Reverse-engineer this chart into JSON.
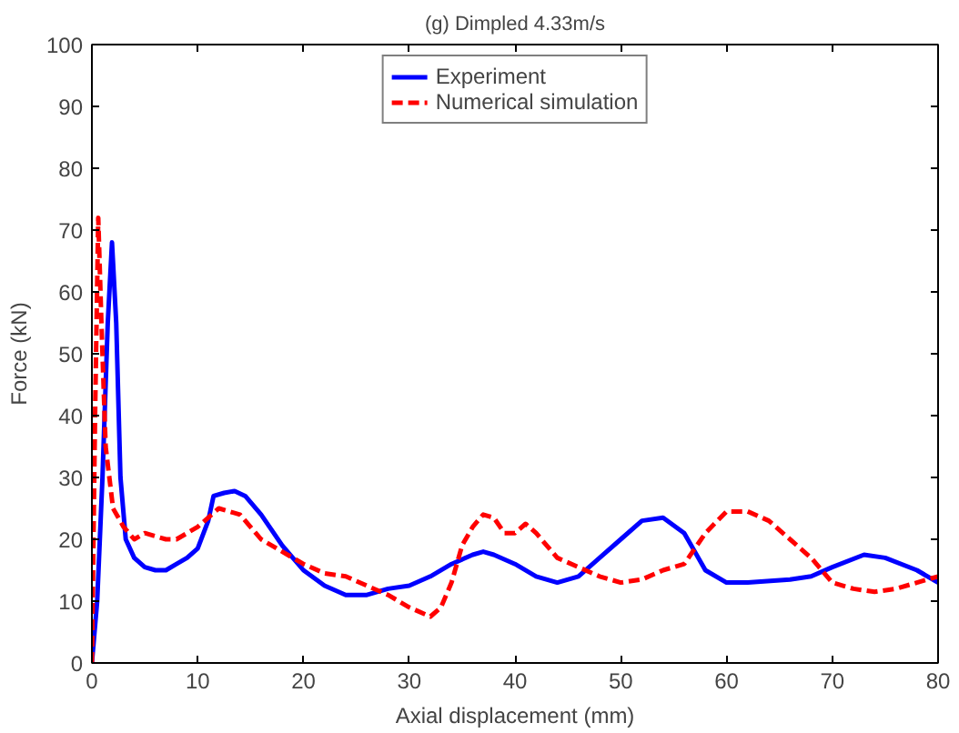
{
  "chart_data": {
    "type": "line",
    "title": "(g) Dimpled 4.33m/s",
    "xlabel": "Axial displacement (mm)",
    "ylabel": "Force (kN)",
    "xlim": [
      0,
      80
    ],
    "ylim": [
      0,
      100
    ],
    "xticks": [
      0,
      10,
      20,
      30,
      40,
      50,
      60,
      70,
      80
    ],
    "yticks": [
      0,
      10,
      20,
      30,
      40,
      50,
      60,
      70,
      80,
      90,
      100
    ],
    "grid": false,
    "legend": "top",
    "series": [
      {
        "name": "Experiment",
        "color": "#0000ff",
        "line_style": "solid",
        "x": [
          0,
          0.5,
          1,
          1.5,
          1.9,
          2.3,
          2.7,
          3.2,
          4,
          5,
          6,
          7,
          8,
          9,
          10,
          11,
          11.5,
          12.5,
          13.5,
          14.5,
          16,
          18,
          20,
          22,
          24,
          26,
          28,
          30,
          32,
          34,
          36,
          37,
          38,
          40,
          42,
          44,
          46,
          48,
          50,
          52,
          54,
          56,
          58,
          60,
          62,
          66,
          68,
          70,
          73,
          75,
          78,
          80
        ],
        "values": [
          0,
          10,
          30,
          55,
          68,
          55,
          30,
          20,
          17,
          15.5,
          15,
          15,
          16,
          17,
          18.5,
          23,
          27,
          27.5,
          27.8,
          27,
          24,
          19,
          15,
          12.5,
          11,
          11,
          12,
          12.5,
          14,
          16,
          17.5,
          18,
          17.5,
          16,
          14,
          13,
          14,
          17,
          20,
          23,
          23.5,
          21,
          15,
          13,
          13,
          13.5,
          14,
          15.5,
          17.5,
          17,
          15,
          13
        ]
      },
      {
        "name": "Numerical simulation",
        "color": "#ff0000",
        "line_style": "dashed",
        "x": [
          0,
          0.3,
          0.6,
          0.9,
          1.3,
          2,
          3,
          4,
          5,
          6,
          7,
          8,
          9,
          10,
          12,
          14,
          16,
          18,
          20,
          22,
          24,
          26,
          28,
          30,
          32,
          33,
          34,
          35,
          36,
          37,
          38,
          39,
          40,
          41,
          42,
          44,
          46,
          48,
          50,
          52,
          54,
          56,
          58,
          60,
          62,
          64,
          66,
          68,
          70,
          72,
          74,
          76,
          78,
          80
        ],
        "values": [
          0,
          40,
          72,
          55,
          35,
          25,
          22,
          20,
          21,
          20.5,
          20,
          20,
          21,
          22,
          25,
          24,
          20,
          18,
          16,
          14.5,
          14,
          12.5,
          11,
          9,
          7.5,
          9,
          13,
          19,
          22,
          24,
          23.5,
          21,
          21,
          22.5,
          21,
          17,
          15.5,
          14,
          13,
          13.5,
          15,
          16,
          21,
          24.5,
          24.5,
          23,
          20,
          17,
          13,
          12,
          11.5,
          12,
          13,
          14
        ]
      }
    ]
  }
}
